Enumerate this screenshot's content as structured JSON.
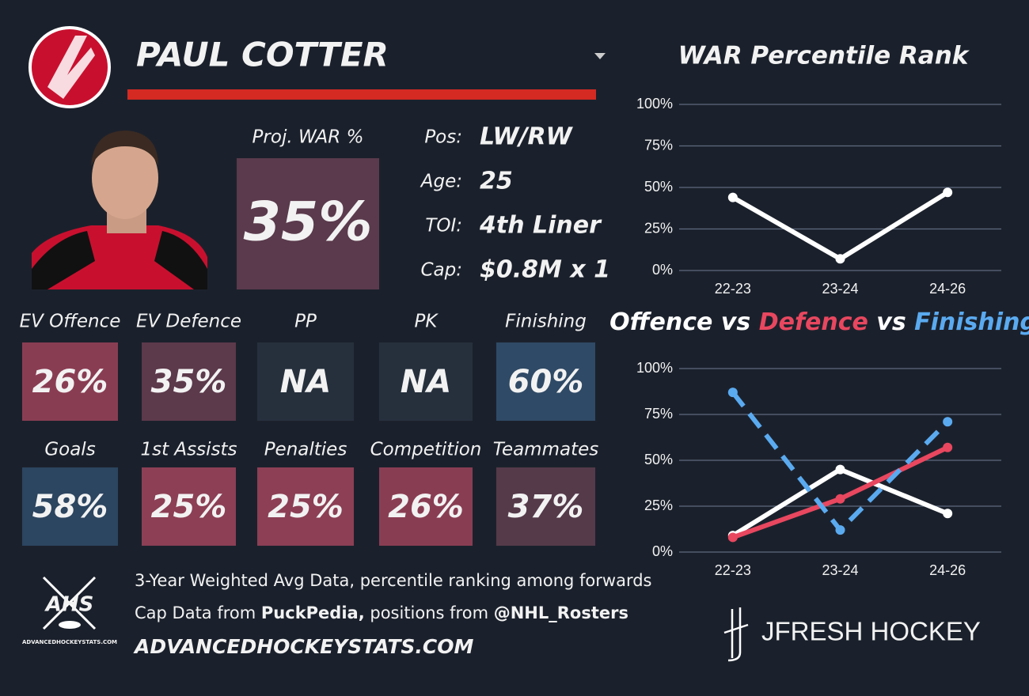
{
  "header": {
    "name": "PAUL COTTER"
  },
  "profile": {
    "proj_label": "Proj. WAR %",
    "proj_value": "35%",
    "proj_color": "#5a3a4c",
    "fields": [
      {
        "label": "Pos:",
        "value": "LW/RW"
      },
      {
        "label": "Age:",
        "value": "25"
      },
      {
        "label": "TOI:",
        "value": "4th Liner"
      },
      {
        "label": "Cap:",
        "value": "$0.8M x 1"
      }
    ]
  },
  "tiles": [
    {
      "label": "EV Offence",
      "value": "26%",
      "color": "#893d53"
    },
    {
      "label": "EV Defence",
      "value": "35%",
      "color": "#5c394b"
    },
    {
      "label": "PP",
      "value": "NA",
      "color": "#26303d"
    },
    {
      "label": "PK",
      "value": "NA",
      "color": "#26303d"
    },
    {
      "label": "Finishing",
      "value": "60%",
      "color": "#2f4a66"
    },
    {
      "label": "Goals",
      "value": "58%",
      "color": "#2c4560"
    },
    {
      "label": "1st Assists",
      "value": "25%",
      "color": "#8c3f55"
    },
    {
      "label": "Penalties",
      "value": "25%",
      "color": "#8c3f55"
    },
    {
      "label": "Competition",
      "value": "26%",
      "color": "#893d53"
    },
    {
      "label": "Teammates",
      "value": "37%",
      "color": "#553a4a"
    }
  ],
  "footer": {
    "logo": "AHS",
    "logo_caption": "ADVANCEDHOCKEYSTATS.COM",
    "line1": "3-Year Weighted Avg Data, percentile ranking among forwards",
    "line2": [
      "Cap Data from ",
      "PuckPedia,",
      " positions from ",
      "@NHL_Rosters"
    ],
    "website": "ADVANCEDHOCKEYSTATS.COM",
    "brand": "JFRESH HOCKEY"
  },
  "chart_data": [
    {
      "type": "line",
      "title": "WAR Percentile Rank",
      "categories": [
        "22-23",
        "23-24",
        "24-26"
      ],
      "series": [
        {
          "color": "#ffffff",
          "values": [
            44,
            7,
            47
          ]
        }
      ],
      "ylim": [
        0,
        100
      ],
      "yticks": [
        {
          "value": 0,
          "label": "0%"
        },
        {
          "value": 25,
          "label": "25%"
        },
        {
          "value": 50,
          "label": "50%"
        },
        {
          "value": 75,
          "label": "75%"
        },
        {
          "value": 100,
          "label": "100%"
        }
      ],
      "grid": true
    },
    {
      "type": "line",
      "title_parts": [
        {
          "text": "Offence",
          "color": "#ffffff"
        },
        {
          "text": " vs ",
          "color": "#ffffff"
        },
        {
          "text": "Defence",
          "color": "#e8475f"
        },
        {
          "text": " vs ",
          "color": "#ffffff"
        },
        {
          "text": "Finishing",
          "color": "#5aaaf0"
        }
      ],
      "categories": [
        "22-23",
        "23-24",
        "24-26"
      ],
      "series": [
        {
          "color": "#ffffff",
          "values": [
            9,
            45,
            21
          ]
        },
        {
          "color": "#e8475f",
          "values": [
            8,
            29,
            57
          ]
        },
        {
          "color": "#5aaaf0",
          "dashed": true,
          "values": [
            87,
            12,
            71
          ]
        }
      ],
      "ylim": [
        0,
        100
      ],
      "yticks": [
        {
          "value": 0,
          "label": "0%"
        },
        {
          "value": 25,
          "label": "25%"
        },
        {
          "value": 50,
          "label": "50%"
        },
        {
          "value": 75,
          "label": "75%"
        },
        {
          "value": 100,
          "label": "100%"
        }
      ],
      "grid": true
    }
  ]
}
